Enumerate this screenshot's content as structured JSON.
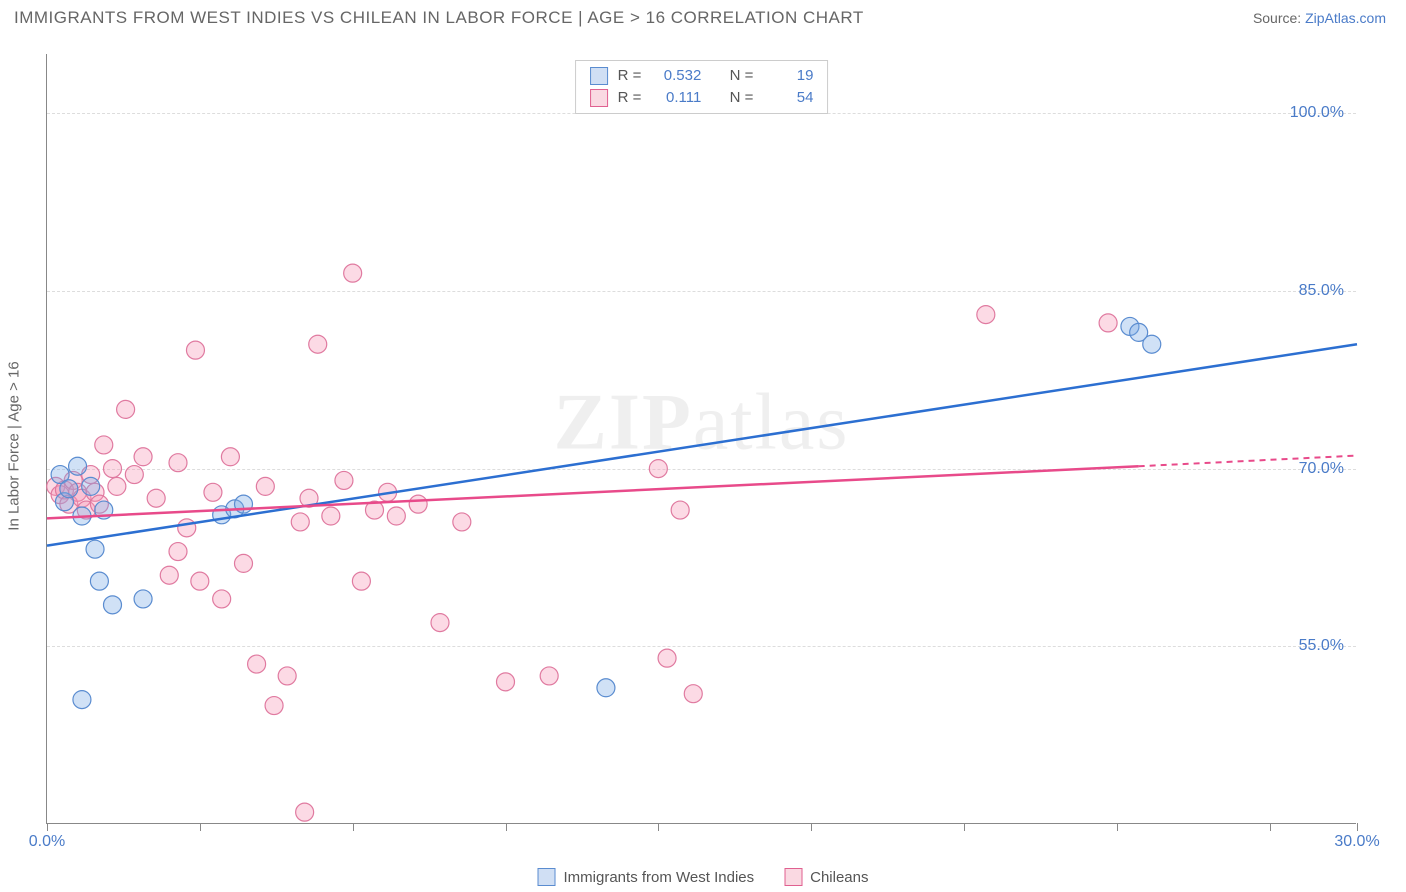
{
  "header": {
    "title": "IMMIGRANTS FROM WEST INDIES VS CHILEAN IN LABOR FORCE | AGE > 16 CORRELATION CHART",
    "source_label": "Source:",
    "source_name": "ZipAtlas.com"
  },
  "watermark": {
    "bold": "ZIP",
    "rest": "atlas"
  },
  "chart": {
    "type": "scatter",
    "y_axis_label": "In Labor Force | Age > 16",
    "xlim": [
      0,
      30
    ],
    "ylim": [
      40,
      105
    ],
    "x_ticks": [
      0,
      3.5,
      7,
      10.5,
      14,
      17.5,
      21,
      24.5,
      28,
      30
    ],
    "x_tick_labels": {
      "0": "0.0%",
      "30": "30.0%"
    },
    "y_gridlines": [
      55,
      70,
      85,
      100
    ],
    "y_tick_labels": {
      "55": "55.0%",
      "70": "70.0%",
      "85": "85.0%",
      "100": "100.0%"
    },
    "background_color": "#ffffff",
    "grid_color": "#dddddd",
    "axis_color": "#888888",
    "marker_radius": 9,
    "series": [
      {
        "name": "Immigrants from West Indies",
        "key": "blue",
        "color_fill": "rgba(120,170,230,0.35)",
        "color_stroke": "#5a8cd0",
        "reg_color": "#2c6fd1",
        "R": "0.532",
        "N": "19",
        "regression": {
          "x1": 0,
          "y1": 63.5,
          "x2": 30,
          "y2": 80.5
        },
        "points": [
          [
            0.3,
            69.5
          ],
          [
            0.4,
            67.2
          ],
          [
            0.5,
            68.3
          ],
          [
            0.7,
            70.2
          ],
          [
            0.8,
            66.0
          ],
          [
            1.0,
            68.5
          ],
          [
            1.1,
            63.2
          ],
          [
            1.2,
            60.5
          ],
          [
            1.3,
            66.5
          ],
          [
            1.5,
            58.5
          ],
          [
            0.8,
            50.5
          ],
          [
            2.2,
            59.0
          ],
          [
            4.0,
            66.1
          ],
          [
            4.3,
            66.6
          ],
          [
            4.5,
            67.0
          ],
          [
            12.8,
            51.5
          ],
          [
            24.8,
            82.0
          ],
          [
            25.3,
            80.5
          ],
          [
            25.0,
            81.5
          ]
        ]
      },
      {
        "name": "Chileans",
        "key": "pink",
        "color_fill": "rgba(245,150,180,0.35)",
        "color_stroke": "#e07aa0",
        "reg_color": "#e84a8a",
        "R": "0.111",
        "N": "54",
        "regression": {
          "x1": 0,
          "y1": 65.8,
          "x2": 25,
          "y2": 70.2
        },
        "regression_dash": {
          "x1": 25,
          "y1": 70.2,
          "x2": 30,
          "y2": 71.1
        },
        "points": [
          [
            0.2,
            68.5
          ],
          [
            0.3,
            67.8
          ],
          [
            0.4,
            68.2
          ],
          [
            0.5,
            67.0
          ],
          [
            0.6,
            69.0
          ],
          [
            0.7,
            68.0
          ],
          [
            0.8,
            67.5
          ],
          [
            0.9,
            66.5
          ],
          [
            1.0,
            69.5
          ],
          [
            1.1,
            68.0
          ],
          [
            1.2,
            67.0
          ],
          [
            1.3,
            72.0
          ],
          [
            1.5,
            70.0
          ],
          [
            1.6,
            68.5
          ],
          [
            1.8,
            75.0
          ],
          [
            2.0,
            69.5
          ],
          [
            2.2,
            71.0
          ],
          [
            2.5,
            67.5
          ],
          [
            2.8,
            61.0
          ],
          [
            3.0,
            70.5
          ],
          [
            3.2,
            65.0
          ],
          [
            3.4,
            80.0
          ],
          [
            3.5,
            60.5
          ],
          [
            3.8,
            68.0
          ],
          [
            4.0,
            59.0
          ],
          [
            4.2,
            71.0
          ],
          [
            4.5,
            62.0
          ],
          [
            4.8,
            53.5
          ],
          [
            5.0,
            68.5
          ],
          [
            5.2,
            50.0
          ],
          [
            5.5,
            52.5
          ],
          [
            5.8,
            65.5
          ],
          [
            5.9,
            41.0
          ],
          [
            6.2,
            80.5
          ],
          [
            6.5,
            66.0
          ],
          [
            6.8,
            69.0
          ],
          [
            7.0,
            86.5
          ],
          [
            7.2,
            60.5
          ],
          [
            7.5,
            66.5
          ],
          [
            7.8,
            68.0
          ],
          [
            8.0,
            66.0
          ],
          [
            8.5,
            67.0
          ],
          [
            9.0,
            57.0
          ],
          [
            9.5,
            65.5
          ],
          [
            10.5,
            52.0
          ],
          [
            11.5,
            52.5
          ],
          [
            14.0,
            70.0
          ],
          [
            14.2,
            54.0
          ],
          [
            14.5,
            66.5
          ],
          [
            14.8,
            51.0
          ],
          [
            21.5,
            83.0
          ],
          [
            24.3,
            82.3
          ],
          [
            6.0,
            67.5
          ],
          [
            3.0,
            63.0
          ]
        ]
      }
    ]
  },
  "legend_top": {
    "R_label": "R =",
    "N_label": "N ="
  },
  "legend_bottom": {
    "items": [
      "Immigrants from West Indies",
      "Chileans"
    ]
  }
}
